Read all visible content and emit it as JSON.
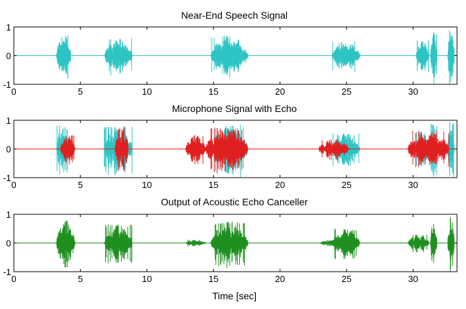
{
  "chart_data": [
    {
      "type": "line",
      "title": "Near-End Speech Signal",
      "xlabel": "",
      "ylabel": "",
      "xlim": [
        0,
        33.3
      ],
      "ylim": [
        -1,
        1
      ],
      "xticks": [
        0,
        5,
        10,
        15,
        20,
        25,
        30
      ],
      "yticks": [
        -1,
        0,
        1
      ],
      "grid": false,
      "series": [
        {
          "color": "#2ec4c4",
          "bursts": [
            {
              "start": 3.2,
              "end": 4.3,
              "amp": 0.75
            },
            {
              "start": 6.8,
              "end": 8.9,
              "amp": 0.6
            },
            {
              "start": 14.8,
              "end": 17.6,
              "amp": 0.7
            },
            {
              "start": 23.9,
              "end": 26.0,
              "amp": 0.5
            },
            {
              "start": 30.2,
              "end": 31.2,
              "amp": 0.55
            },
            {
              "start": 31.3,
              "end": 31.8,
              "amp": 0.85
            },
            {
              "start": 32.6,
              "end": 33.1,
              "amp": 1.0
            }
          ]
        }
      ]
    },
    {
      "type": "line",
      "title": "Microphone Signal with Echo",
      "xlabel": "",
      "ylabel": "",
      "xlim": [
        0,
        33.3
      ],
      "ylim": [
        -1,
        1
      ],
      "xticks": [
        0,
        5,
        10,
        15,
        20,
        25,
        30
      ],
      "yticks": [
        -1,
        0,
        1
      ],
      "grid": false,
      "series": [
        {
          "color": "#2ec4c4",
          "bursts": [
            {
              "start": 3.2,
              "end": 4.3,
              "amp": 0.85
            },
            {
              "start": 6.8,
              "end": 8.9,
              "amp": 0.8
            },
            {
              "start": 14.8,
              "end": 17.6,
              "amp": 0.85
            },
            {
              "start": 23.9,
              "end": 26.0,
              "amp": 0.55
            },
            {
              "start": 30.2,
              "end": 31.2,
              "amp": 0.6
            },
            {
              "start": 31.3,
              "end": 31.8,
              "amp": 0.9
            },
            {
              "start": 32.6,
              "end": 33.1,
              "amp": 1.0
            }
          ]
        },
        {
          "color": "#e02020",
          "bursts": [
            {
              "start": 3.5,
              "end": 4.6,
              "amp": 0.5
            },
            {
              "start": 7.6,
              "end": 8.6,
              "amp": 0.8
            },
            {
              "start": 12.9,
              "end": 14.4,
              "amp": 0.5
            },
            {
              "start": 14.4,
              "end": 17.6,
              "amp": 0.75
            },
            {
              "start": 22.9,
              "end": 25.2,
              "amp": 0.35
            },
            {
              "start": 29.6,
              "end": 32.7,
              "amp": 0.65
            }
          ]
        }
      ]
    },
    {
      "type": "line",
      "title": "Output of Acoustic Echo Canceller",
      "xlabel": "Time [sec]",
      "ylabel": "",
      "xlim": [
        0,
        33.3
      ],
      "ylim": [
        -1,
        1
      ],
      "xticks": [
        0,
        5,
        10,
        15,
        20,
        25,
        30
      ],
      "yticks": [
        -1,
        0,
        1
      ],
      "grid": false,
      "series": [
        {
          "color": "#1f8f1f",
          "bursts": [
            {
              "start": 3.2,
              "end": 4.6,
              "amp": 0.8
            },
            {
              "start": 6.8,
              "end": 8.9,
              "amp": 0.65
            },
            {
              "start": 12.9,
              "end": 14.4,
              "amp": 0.12
            },
            {
              "start": 14.8,
              "end": 17.6,
              "amp": 0.75
            },
            {
              "start": 22.9,
              "end": 25.2,
              "amp": 0.1
            },
            {
              "start": 23.9,
              "end": 26.0,
              "amp": 0.5
            },
            {
              "start": 29.6,
              "end": 31.2,
              "amp": 0.3
            },
            {
              "start": 31.3,
              "end": 31.8,
              "amp": 0.9
            },
            {
              "start": 32.6,
              "end": 33.1,
              "amp": 1.0
            }
          ]
        }
      ]
    }
  ]
}
